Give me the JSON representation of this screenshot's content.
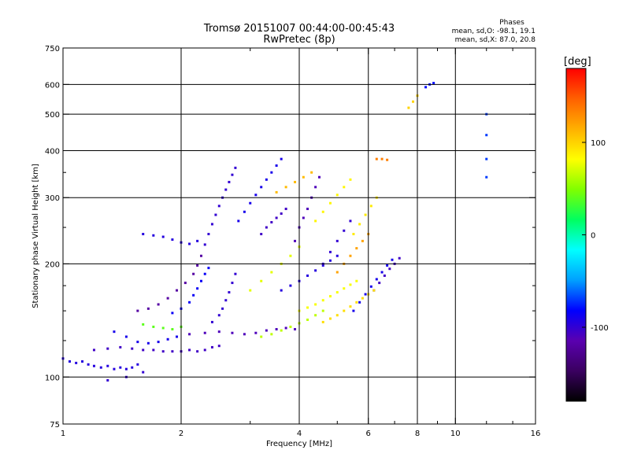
{
  "chart_data": {
    "type": "scatter",
    "title": "Tromsø 20151007 00:44:00-00:45:43",
    "subtitle": "RwPretec (8p)",
    "xlabel": "Frequency [MHz]",
    "ylabel": "Stationary phase Virtual Height [km]",
    "x_scale": "log",
    "y_scale": "log",
    "xlim": [
      1,
      16
    ],
    "ylim": [
      75,
      750
    ],
    "grid": true,
    "x_ticks": [
      {
        "value": 1,
        "label": "1"
      },
      {
        "value": 2,
        "label": "2"
      },
      {
        "value": 4,
        "label": "4"
      },
      {
        "value": 6,
        "label": "6"
      },
      {
        "value": 8,
        "label": "8"
      },
      {
        "value": 10,
        "label": "10"
      },
      {
        "value": 16,
        "label": "16"
      }
    ],
    "x_major_grid": [
      2,
      4,
      6,
      8,
      10
    ],
    "x_minor_ticks": [
      3,
      5,
      7,
      9,
      12,
      14
    ],
    "y_ticks": [
      {
        "value": 75,
        "label": "75"
      },
      {
        "value": 100,
        "label": "100"
      },
      {
        "value": 200,
        "label": "200"
      },
      {
        "value": 300,
        "label": "300"
      },
      {
        "value": 400,
        "label": "400"
      },
      {
        "value": 500,
        "label": "500"
      },
      {
        "value": 600,
        "label": "600"
      },
      {
        "value": 750,
        "label": "750"
      }
    ],
    "y_major_grid": [
      100,
      200,
      300,
      400,
      500,
      600
    ],
    "y_minor_ticks": [
      125,
      150,
      175,
      250,
      350
    ],
    "phase_info": {
      "heading": "Phases",
      "line_o": "mean, sd,O: -98.1, 19.1",
      "line_x": "mean, sd,X:  87.0, 20.8"
    },
    "colorbar": {
      "label": "[deg]",
      "range": [
        -180,
        180
      ],
      "ticks": [
        {
          "value": 100,
          "label": "100"
        },
        {
          "value": 0,
          "label": "0"
        },
        {
          "value": -100,
          "label": "-100"
        }
      ],
      "colors": [
        "#000000",
        "#3a0060",
        "#5a00b0",
        "#0000ff",
        "#00a0ff",
        "#00ffff",
        "#00ff60",
        "#80ff00",
        "#ffff00",
        "#ffb000",
        "#ff6000",
        "#ff0000"
      ]
    },
    "series": [
      {
        "phase": -95,
        "points": [
          [
            1.0,
            112
          ],
          [
            1.04,
            110
          ],
          [
            1.08,
            109
          ],
          [
            1.12,
            110
          ],
          [
            1.16,
            108
          ],
          [
            1.2,
            107
          ],
          [
            1.25,
            106
          ],
          [
            1.3,
            107
          ],
          [
            1.35,
            105
          ],
          [
            1.4,
            106
          ],
          [
            1.45,
            105
          ],
          [
            1.5,
            106
          ],
          [
            1.55,
            108
          ]
        ]
      },
      {
        "phase": -105,
        "points": [
          [
            1.2,
            118
          ],
          [
            1.3,
            119
          ],
          [
            1.4,
            120
          ],
          [
            1.5,
            119
          ],
          [
            1.6,
            118
          ],
          [
            1.7,
            118
          ],
          [
            1.8,
            117
          ],
          [
            1.9,
            117
          ],
          [
            2.0,
            117
          ],
          [
            2.1,
            118
          ],
          [
            2.2,
            117
          ],
          [
            2.3,
            118
          ],
          [
            2.4,
            120
          ],
          [
            2.5,
            121
          ]
        ]
      },
      {
        "phase": -90,
        "points": [
          [
            1.35,
            132
          ],
          [
            1.45,
            128
          ],
          [
            1.55,
            124
          ],
          [
            1.65,
            123
          ],
          [
            1.75,
            124
          ],
          [
            1.85,
            126
          ],
          [
            1.95,
            128
          ]
        ]
      },
      {
        "phase": -110,
        "points": [
          [
            2.1,
            130
          ],
          [
            2.3,
            131
          ],
          [
            2.5,
            132
          ],
          [
            2.7,
            131
          ],
          [
            2.9,
            130
          ],
          [
            3.1,
            131
          ],
          [
            3.3,
            133
          ],
          [
            3.5,
            134
          ],
          [
            3.7,
            135
          ],
          [
            3.9,
            134
          ]
        ]
      },
      {
        "phase": -85,
        "points": [
          [
            1.9,
            148
          ],
          [
            2.0,
            152
          ],
          [
            2.1,
            158
          ],
          [
            2.15,
            165
          ],
          [
            2.2,
            172
          ],
          [
            2.25,
            180
          ],
          [
            2.3,
            188
          ],
          [
            2.35,
            195
          ]
        ]
      },
      {
        "phase": -100,
        "points": [
          [
            2.4,
            140
          ],
          [
            2.5,
            146
          ],
          [
            2.55,
            152
          ],
          [
            2.6,
            160
          ],
          [
            2.65,
            168
          ],
          [
            2.7,
            178
          ],
          [
            2.75,
            188
          ]
        ]
      },
      {
        "phase": -120,
        "points": [
          [
            1.55,
            150
          ],
          [
            1.65,
            152
          ],
          [
            1.75,
            156
          ],
          [
            1.85,
            162
          ],
          [
            1.95,
            170
          ],
          [
            2.05,
            178
          ],
          [
            2.15,
            188
          ],
          [
            2.2,
            198
          ],
          [
            2.25,
            210
          ]
        ]
      },
      {
        "phase": -100,
        "points": [
          [
            2.3,
            225
          ],
          [
            2.35,
            240
          ],
          [
            2.4,
            255
          ],
          [
            2.45,
            270
          ],
          [
            2.5,
            285
          ],
          [
            2.55,
            300
          ],
          [
            2.6,
            315
          ],
          [
            2.65,
            330
          ],
          [
            2.7,
            345
          ],
          [
            2.75,
            360
          ]
        ]
      },
      {
        "phase": -95,
        "points": [
          [
            1.6,
            240
          ],
          [
            1.7,
            238
          ],
          [
            1.8,
            236
          ],
          [
            1.9,
            232
          ],
          [
            2.0,
            228
          ],
          [
            2.1,
            226
          ],
          [
            2.2,
            230
          ]
        ]
      },
      {
        "phase": -90,
        "points": [
          [
            2.8,
            260
          ],
          [
            2.9,
            275
          ],
          [
            3.0,
            290
          ],
          [
            3.1,
            305
          ],
          [
            3.2,
            320
          ],
          [
            3.3,
            335
          ],
          [
            3.4,
            350
          ],
          [
            3.5,
            365
          ],
          [
            3.6,
            380
          ]
        ]
      },
      {
        "phase": -105,
        "points": [
          [
            3.2,
            240
          ],
          [
            3.3,
            250
          ],
          [
            3.4,
            258
          ],
          [
            3.5,
            265
          ],
          [
            3.6,
            272
          ],
          [
            3.7,
            280
          ]
        ]
      },
      {
        "phase": -95,
        "points": [
          [
            3.6,
            170
          ],
          [
            3.8,
            175
          ],
          [
            4.0,
            180
          ],
          [
            4.2,
            186
          ],
          [
            4.4,
            192
          ],
          [
            4.6,
            198
          ],
          [
            4.8,
            204
          ],
          [
            5.0,
            210
          ]
        ]
      },
      {
        "phase": -110,
        "points": [
          [
            3.9,
            230
          ],
          [
            4.0,
            250
          ],
          [
            4.1,
            265
          ],
          [
            4.2,
            280
          ],
          [
            4.3,
            300
          ],
          [
            4.4,
            320
          ],
          [
            4.5,
            340
          ]
        ]
      },
      {
        "phase": -100,
        "points": [
          [
            4.6,
            200
          ],
          [
            4.8,
            215
          ],
          [
            5.0,
            230
          ],
          [
            5.2,
            245
          ],
          [
            5.4,
            260
          ]
        ]
      },
      {
        "phase": -90,
        "points": [
          [
            5.5,
            150
          ],
          [
            5.7,
            158
          ],
          [
            5.9,
            166
          ],
          [
            6.1,
            174
          ],
          [
            6.3,
            182
          ],
          [
            6.5,
            190
          ],
          [
            6.7,
            198
          ],
          [
            6.9,
            205
          ]
        ]
      },
      {
        "phase": -105,
        "points": [
          [
            6.2,
            170
          ],
          [
            6.4,
            178
          ],
          [
            6.6,
            186
          ],
          [
            6.8,
            194
          ],
          [
            7.0,
            200
          ],
          [
            7.2,
            207
          ]
        ]
      },
      {
        "phase": 40,
        "points": [
          [
            1.6,
            138
          ],
          [
            1.7,
            136
          ],
          [
            1.8,
            135
          ],
          [
            1.9,
            134
          ],
          [
            2.0,
            136
          ]
        ]
      },
      {
        "phase": 65,
        "points": [
          [
            3.2,
            128
          ],
          [
            3.4,
            130
          ],
          [
            3.6,
            133
          ],
          [
            3.8,
            136
          ],
          [
            4.0,
            139
          ],
          [
            4.2,
            142
          ],
          [
            4.4,
            146
          ],
          [
            4.6,
            150
          ]
        ]
      },
      {
        "phase": 80,
        "points": [
          [
            4.0,
            150
          ],
          [
            4.2,
            153
          ],
          [
            4.4,
            156
          ],
          [
            4.6,
            160
          ],
          [
            4.8,
            164
          ],
          [
            5.0,
            168
          ],
          [
            5.2,
            172
          ],
          [
            5.4,
            176
          ],
          [
            5.6,
            180
          ]
        ]
      },
      {
        "phase": 95,
        "points": [
          [
            4.6,
            140
          ],
          [
            4.8,
            143
          ],
          [
            5.0,
            146
          ],
          [
            5.2,
            150
          ],
          [
            5.4,
            154
          ],
          [
            5.6,
            158
          ],
          [
            5.8,
            162
          ],
          [
            6.0,
            166
          ],
          [
            6.2,
            170
          ]
        ]
      },
      {
        "phase": 75,
        "points": [
          [
            3.0,
            170
          ],
          [
            3.2,
            180
          ],
          [
            3.4,
            190
          ],
          [
            3.6,
            200
          ],
          [
            3.8,
            210
          ],
          [
            4.0,
            222
          ]
        ]
      },
      {
        "phase": 85,
        "points": [
          [
            4.4,
            260
          ],
          [
            4.6,
            275
          ],
          [
            4.8,
            290
          ],
          [
            5.0,
            305
          ],
          [
            5.2,
            320
          ],
          [
            5.4,
            335
          ]
        ]
      },
      {
        "phase": 120,
        "points": [
          [
            5.0,
            190
          ],
          [
            5.2,
            200
          ],
          [
            5.4,
            210
          ],
          [
            5.6,
            220
          ],
          [
            5.8,
            230
          ],
          [
            6.0,
            240
          ]
        ]
      },
      {
        "phase": 110,
        "points": [
          [
            3.5,
            310
          ],
          [
            3.7,
            320
          ],
          [
            3.9,
            330
          ],
          [
            4.1,
            340
          ],
          [
            4.3,
            350
          ]
        ]
      },
      {
        "phase": 90,
        "points": [
          [
            5.5,
            240
          ],
          [
            5.7,
            255
          ],
          [
            5.9,
            270
          ],
          [
            6.1,
            285
          ],
          [
            6.3,
            300
          ]
        ]
      },
      {
        "phase": 135,
        "points": [
          [
            6.3,
            380
          ],
          [
            6.5,
            380
          ],
          [
            6.7,
            378
          ]
        ]
      },
      {
        "phase": 100,
        "points": [
          [
            7.6,
            520
          ],
          [
            7.8,
            540
          ],
          [
            8.0,
            560
          ]
        ]
      },
      {
        "phase": -80,
        "points": [
          [
            8.4,
            590
          ],
          [
            8.6,
            600
          ],
          [
            8.8,
            605
          ]
        ]
      },
      {
        "phase": -70,
        "points": [
          [
            12.0,
            500
          ],
          [
            12.0,
            440
          ],
          [
            12.0,
            380
          ],
          [
            12.0,
            340
          ]
        ]
      },
      {
        "phase": -100,
        "points": [
          [
            1.3,
            98
          ],
          [
            1.45,
            100
          ],
          [
            1.6,
            103
          ]
        ]
      }
    ]
  }
}
